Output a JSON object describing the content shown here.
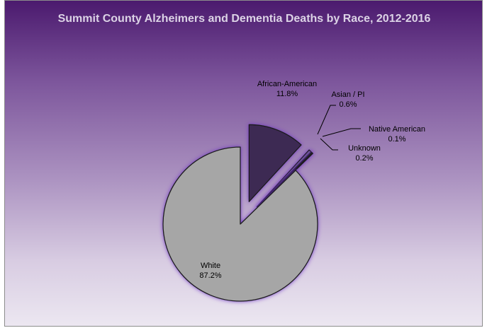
{
  "chart_data": {
    "type": "pie",
    "title": "Summit County Alzheimers and Dementia Deaths by Race, 2012-2016",
    "legend": "none",
    "slices": [
      {
        "label": "African-American",
        "value": 11.8,
        "display": "11.8%",
        "color": "#3d2a52"
      },
      {
        "label": "Asian / PI",
        "value": 0.6,
        "display": "0.6%",
        "color": "#6b5a8c"
      },
      {
        "label": "Native American",
        "value": 0.1,
        "display": "0.1%",
        "color": "#8a7aa8"
      },
      {
        "label": "Unknown",
        "value": 0.2,
        "display": "0.2%",
        "color": "#c9c0d8"
      },
      {
        "label": "White",
        "value": 87.2,
        "display": "87.2%",
        "color": "#a6a6a6"
      }
    ]
  }
}
